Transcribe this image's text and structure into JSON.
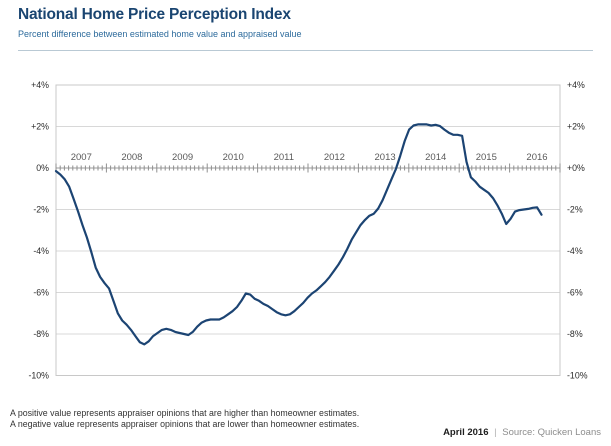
{
  "header": {
    "title": "National Home Price Perception Index",
    "subtitle": "Percent difference between estimated home value and appraised value"
  },
  "footer": {
    "note_line1": "A positive value represents appraiser opinions that are higher than homeowner estimates.",
    "note_line2": "A negative value represents appraiser opinions that are lower than homeowner estimates.",
    "date": "April 2016",
    "separator": "|",
    "source": "Source: Quicken Loans"
  },
  "colors": {
    "title": "#1a4571",
    "subtitle": "#2d6b9c",
    "line": "#1c4473",
    "grid": "#d8d8d8",
    "frame": "#c8c8c8",
    "axis": "#9a9a9a",
    "tick": "#8f8f8f",
    "year_label": "#5a5a5a",
    "y_label": "#2b2b2b",
    "note": "#333333",
    "source": "#8d8d8d",
    "divider": "#b9c9d4"
  },
  "chart_data": {
    "type": "line",
    "title": "National Home Price Perception Index",
    "subtitle": "Percent difference between estimated home value and appraised value",
    "xlabel": "",
    "ylabel": "Percent difference between estimated home value and appraised value (%)",
    "ylim": [
      -10,
      4
    ],
    "grid": true,
    "legend": "none",
    "y_ticks": [
      4,
      2,
      0,
      -2,
      -4,
      -6,
      -8,
      -10
    ],
    "y_tick_labels_left": [
      "+4%",
      "+2%",
      "0%",
      "-2%",
      "-4%",
      "-6%",
      "-8%",
      "-10%"
    ],
    "y_tick_labels_right": [
      "+4%",
      "+2%",
      "+0%",
      "-2%",
      "-4%",
      "-6%",
      "-8%",
      "-10%"
    ],
    "x_year_labels": [
      "2007",
      "2008",
      "2009",
      "2010",
      "2011",
      "2012",
      "2013",
      "2014",
      "2015",
      "2016"
    ],
    "x_start": "2007-01",
    "x_end": "2016-03",
    "x_interval": "monthly",
    "values": [
      -0.15,
      -0.32,
      -0.55,
      -0.9,
      -1.5,
      -2.1,
      -2.75,
      -3.35,
      -4.05,
      -4.8,
      -5.25,
      -5.55,
      -5.8,
      -6.4,
      -7.0,
      -7.35,
      -7.55,
      -7.8,
      -8.1,
      -8.4,
      -8.5,
      -8.35,
      -8.1,
      -7.95,
      -7.8,
      -7.75,
      -7.8,
      -7.9,
      -7.95,
      -8.0,
      -8.05,
      -7.9,
      -7.65,
      -7.45,
      -7.35,
      -7.3,
      -7.3,
      -7.3,
      -7.2,
      -7.05,
      -6.9,
      -6.7,
      -6.4,
      -6.05,
      -6.1,
      -6.3,
      -6.4,
      -6.55,
      -6.65,
      -6.8,
      -6.95,
      -7.05,
      -7.1,
      -7.05,
      -6.9,
      -6.7,
      -6.5,
      -6.25,
      -6.05,
      -5.9,
      -5.7,
      -5.5,
      -5.25,
      -4.95,
      -4.65,
      -4.3,
      -3.9,
      -3.45,
      -3.1,
      -2.75,
      -2.5,
      -2.3,
      -2.2,
      -1.95,
      -1.55,
      -1.05,
      -0.55,
      -0.05,
      0.6,
      1.3,
      1.85,
      2.05,
      2.1,
      2.1,
      2.1,
      2.05,
      2.08,
      2.02,
      1.85,
      1.7,
      1.6,
      1.6,
      1.55,
      0.3,
      -0.45,
      -0.65,
      -0.9,
      -1.05,
      -1.2,
      -1.45,
      -1.8,
      -2.2,
      -2.7,
      -2.45,
      -2.1,
      -2.03,
      -2.0,
      -1.97,
      -1.92,
      -1.9,
      -2.25
    ]
  }
}
